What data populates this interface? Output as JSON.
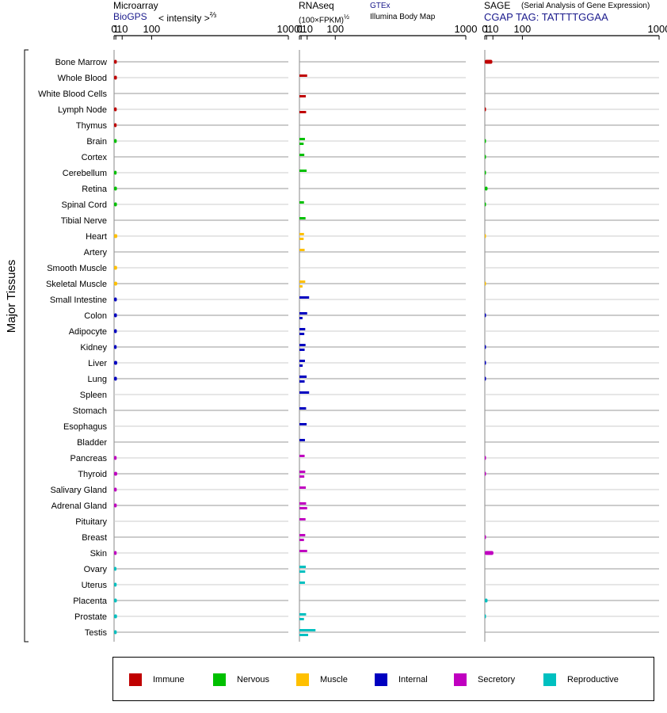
{
  "headers": {
    "microarray_title": "Microarray",
    "microarray_source": "BioGPS",
    "microarray_unit": "< intensity >",
    "microarray_exp": "⅔",
    "rnaseq_title": "RNAseq",
    "rnaseq_unit": "(100×FPKM)",
    "rnaseq_exp": "½",
    "rnaseq_src1": "GTEx",
    "rnaseq_src2": "Illumina Body Map",
    "sage_title": "SAGE",
    "sage_desc": "(Serial Analysis of Gene Expression)",
    "sage_tag": "CGAP TAG: TATTTTGGAA"
  },
  "legend": [
    {
      "label": "Immune",
      "color": "#c00000"
    },
    {
      "label": "Nervous",
      "color": "#00c000"
    },
    {
      "label": "Muscle",
      "color": "#ffc000"
    },
    {
      "label": "Internal",
      "color": "#0000c0"
    },
    {
      "label": "Secretory",
      "color": "#c000c0"
    },
    {
      "label": "Reproductive",
      "color": "#00c0c0"
    }
  ],
  "chart_data": {
    "type": "bar",
    "ylabel": "Major Tissues",
    "x_ticks": [
      "0",
      "1",
      "10",
      "100",
      "1000"
    ],
    "xlim": [
      0,
      1000
    ],
    "scale": "power",
    "categories": [
      "Bone Marrow",
      "Whole Blood",
      "White Blood Cells",
      "Lymph Node",
      "Thymus",
      "Brain",
      "Cortex",
      "Cerebellum",
      "Retina",
      "Spinal Cord",
      "Tibial Nerve",
      "Heart",
      "Artery",
      "Smooth Muscle",
      "Skeletal Muscle",
      "Small Intestine",
      "Colon",
      "Adipocyte",
      "Kidney",
      "Liver",
      "Lung",
      "Spleen",
      "Stomach",
      "Esophagus",
      "Bladder",
      "Pancreas",
      "Thyroid",
      "Salivary Gland",
      "Adrenal Gland",
      "Pituitary",
      "Breast",
      "Skin",
      "Ovary",
      "Uterus",
      "Placenta",
      "Prostate",
      "Testis"
    ],
    "groups": [
      "Immune",
      "Immune",
      "Immune",
      "Immune",
      "Immune",
      "Nervous",
      "Nervous",
      "Nervous",
      "Nervous",
      "Nervous",
      "Nervous",
      "Muscle",
      "Muscle",
      "Muscle",
      "Muscle",
      "Internal",
      "Internal",
      "Internal",
      "Internal",
      "Internal",
      "Internal",
      "Internal",
      "Internal",
      "Internal",
      "Internal",
      "Secretory",
      "Secretory",
      "Secretory",
      "Secretory",
      "Secretory",
      "Secretory",
      "Secretory",
      "Reproductive",
      "Reproductive",
      "Reproductive",
      "Reproductive",
      "Reproductive"
    ],
    "series": [
      {
        "name": "Microarray",
        "values": [
          2.0,
          2.1,
          null,
          1.9,
          1.8,
          1.9,
          null,
          1.8,
          2.1,
          2.1,
          null,
          2.5,
          null,
          2.3,
          2.4,
          2.0,
          2.1,
          2.0,
          1.8,
          2.4,
          2.1,
          null,
          null,
          null,
          null,
          1.8,
          2.4,
          1.9,
          1.9,
          null,
          null,
          1.8,
          1.6,
          1.8,
          2.0,
          2.2,
          1.9
        ]
      },
      {
        "name": "GTEx",
        "values": [
          null,
          10,
          null,
          null,
          null,
          6,
          5,
          9,
          null,
          4.5,
          7,
          4.5,
          5.5,
          null,
          6.5,
          14,
          10,
          6.5,
          7,
          6,
          9,
          14,
          8,
          9,
          6,
          5.5,
          6.5,
          7.5,
          8,
          7,
          6.5,
          10,
          7.5,
          6,
          null,
          8,
          30
        ]
      },
      {
        "name": "Illumina Body Map",
        "values": [
          null,
          null,
          7.5,
          8,
          null,
          4,
          null,
          null,
          null,
          null,
          null,
          4,
          null,
          null,
          2.5,
          null,
          2.5,
          5,
          5.5,
          2.7,
          5.5,
          null,
          null,
          null,
          null,
          null,
          5,
          null,
          10,
          null,
          4.5,
          null,
          6.5,
          null,
          null,
          4.5,
          12
        ]
      },
      {
        "name": "SAGE",
        "values": [
          9,
          null,
          null,
          0.02,
          null,
          0.02,
          0.02,
          0.02,
          2,
          0.02,
          null,
          0.01,
          null,
          null,
          0.01,
          null,
          0.02,
          null,
          0.02,
          0.02,
          0.02,
          null,
          null,
          null,
          null,
          0.02,
          0.02,
          null,
          null,
          null,
          0.02,
          11,
          null,
          null,
          2,
          0.02,
          null
        ]
      }
    ]
  }
}
